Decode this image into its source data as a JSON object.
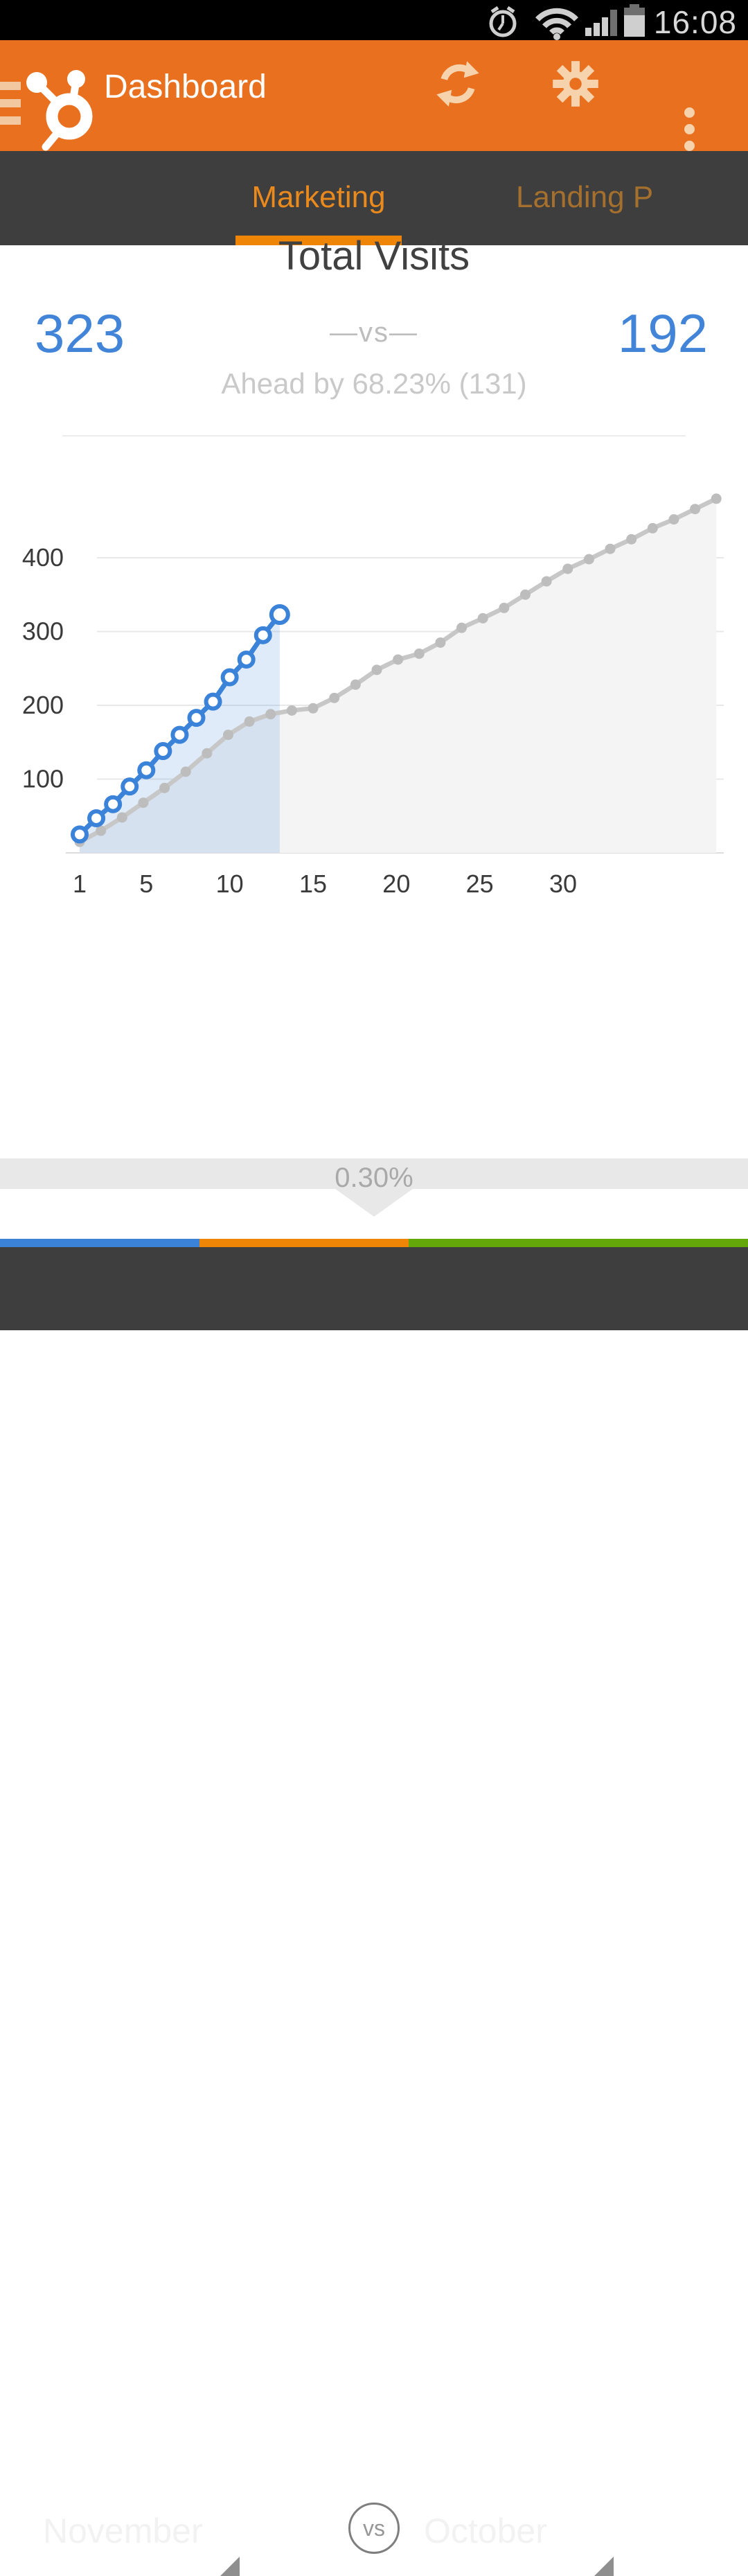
{
  "status_bar": {
    "time": "16:08",
    "icons": [
      "alarm-icon",
      "wifi-icon",
      "signal-icon",
      "battery-icon"
    ]
  },
  "header": {
    "title": "Dashboard",
    "logo": "hubspot-sprocket",
    "actions": [
      "refresh",
      "settings",
      "overflow-menu"
    ]
  },
  "tabs": {
    "active": "Marketing",
    "items": [
      {
        "label": "Marketing",
        "active": true
      },
      {
        "label": "Landing P",
        "active": false
      }
    ]
  },
  "summary": {
    "title": "Total Visits",
    "left_value": "323",
    "vs_label": "—vs—",
    "right_value": "192",
    "ahead_text": "Ahead by 68.23% (131)"
  },
  "chart_data": {
    "type": "line",
    "title": "Total Visits",
    "x_tick_labels": [
      "1",
      "5",
      "10",
      "15",
      "20",
      "25",
      "30"
    ],
    "y_tick_labels": [
      "100",
      "200",
      "300",
      "400"
    ],
    "ylim": [
      0,
      488
    ],
    "grid": true,
    "legend": "none",
    "series": [
      {
        "name": "October",
        "role": "previous-period",
        "line_color": "#c7c7c7",
        "marker": "filled-dot",
        "marker_color": "#bdbdbd",
        "area_color": "#f4f4f4",
        "day_step": 1.273,
        "values": [
          15,
          30,
          48,
          68,
          88,
          110,
          135,
          160,
          178,
          188,
          193,
          196,
          210,
          228,
          248,
          262,
          270,
          285,
          305,
          318,
          332,
          350,
          368,
          385,
          398,
          412,
          425,
          440,
          452,
          466,
          480
        ]
      },
      {
        "name": "November",
        "role": "current-period",
        "line_color": "#3b82d9",
        "marker": "open-circle",
        "marker_color": "#3b82d9",
        "area_color": "rgba(59,130,217,0.16)",
        "day_step": 1,
        "values": [
          25,
          47,
          66,
          90,
          112,
          138,
          160,
          183,
          205,
          238,
          262,
          295,
          323
        ]
      }
    ],
    "comparison": {
      "current_total": 323,
      "previous_at_same_point": 192,
      "ahead_percent": "68.23%",
      "ahead_amount": 131
    }
  },
  "delta_band": {
    "value": "0.30%"
  },
  "bottom_bar": {
    "left_month": "November",
    "vs": "vs",
    "right_month": "October"
  },
  "colors": {
    "header_orange": "#e8701e",
    "indicator_orange": "#ee8507",
    "active_tab": "#ea8a1c",
    "inactive_tab": "#a5702d",
    "value_blue": "#4285d8",
    "strip_blue": "#3b82d9",
    "strip_green": "#63a70a",
    "dark_bar": "#3e3e3e"
  }
}
